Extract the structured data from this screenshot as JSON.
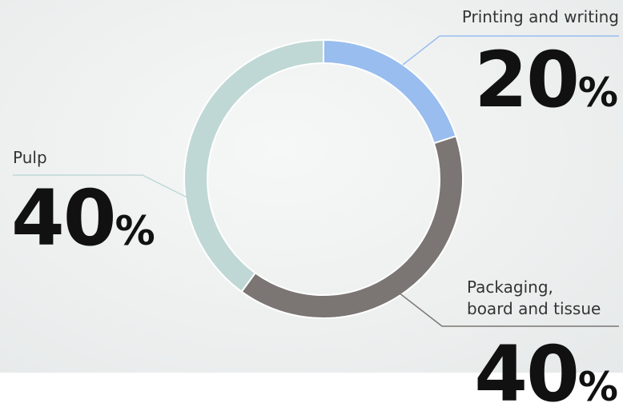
{
  "chart_data": {
    "type": "pie",
    "donut": true,
    "categories": [
      "Printing and writing",
      "Packaging, board and tissue",
      "Pulp"
    ],
    "values": [
      20,
      40,
      40
    ],
    "value_labels": [
      {
        "number": "20",
        "unit": "%"
      },
      {
        "number": "40",
        "unit": "%"
      },
      {
        "number": "40",
        "unit": "%"
      }
    ],
    "label_lines": {
      "packaging": [
        "Packaging,",
        "board and tissue"
      ]
    },
    "colors": [
      "#98bdee",
      "#7b7674",
      "#bfd8d5"
    ],
    "title": "",
    "legend": "none"
  }
}
